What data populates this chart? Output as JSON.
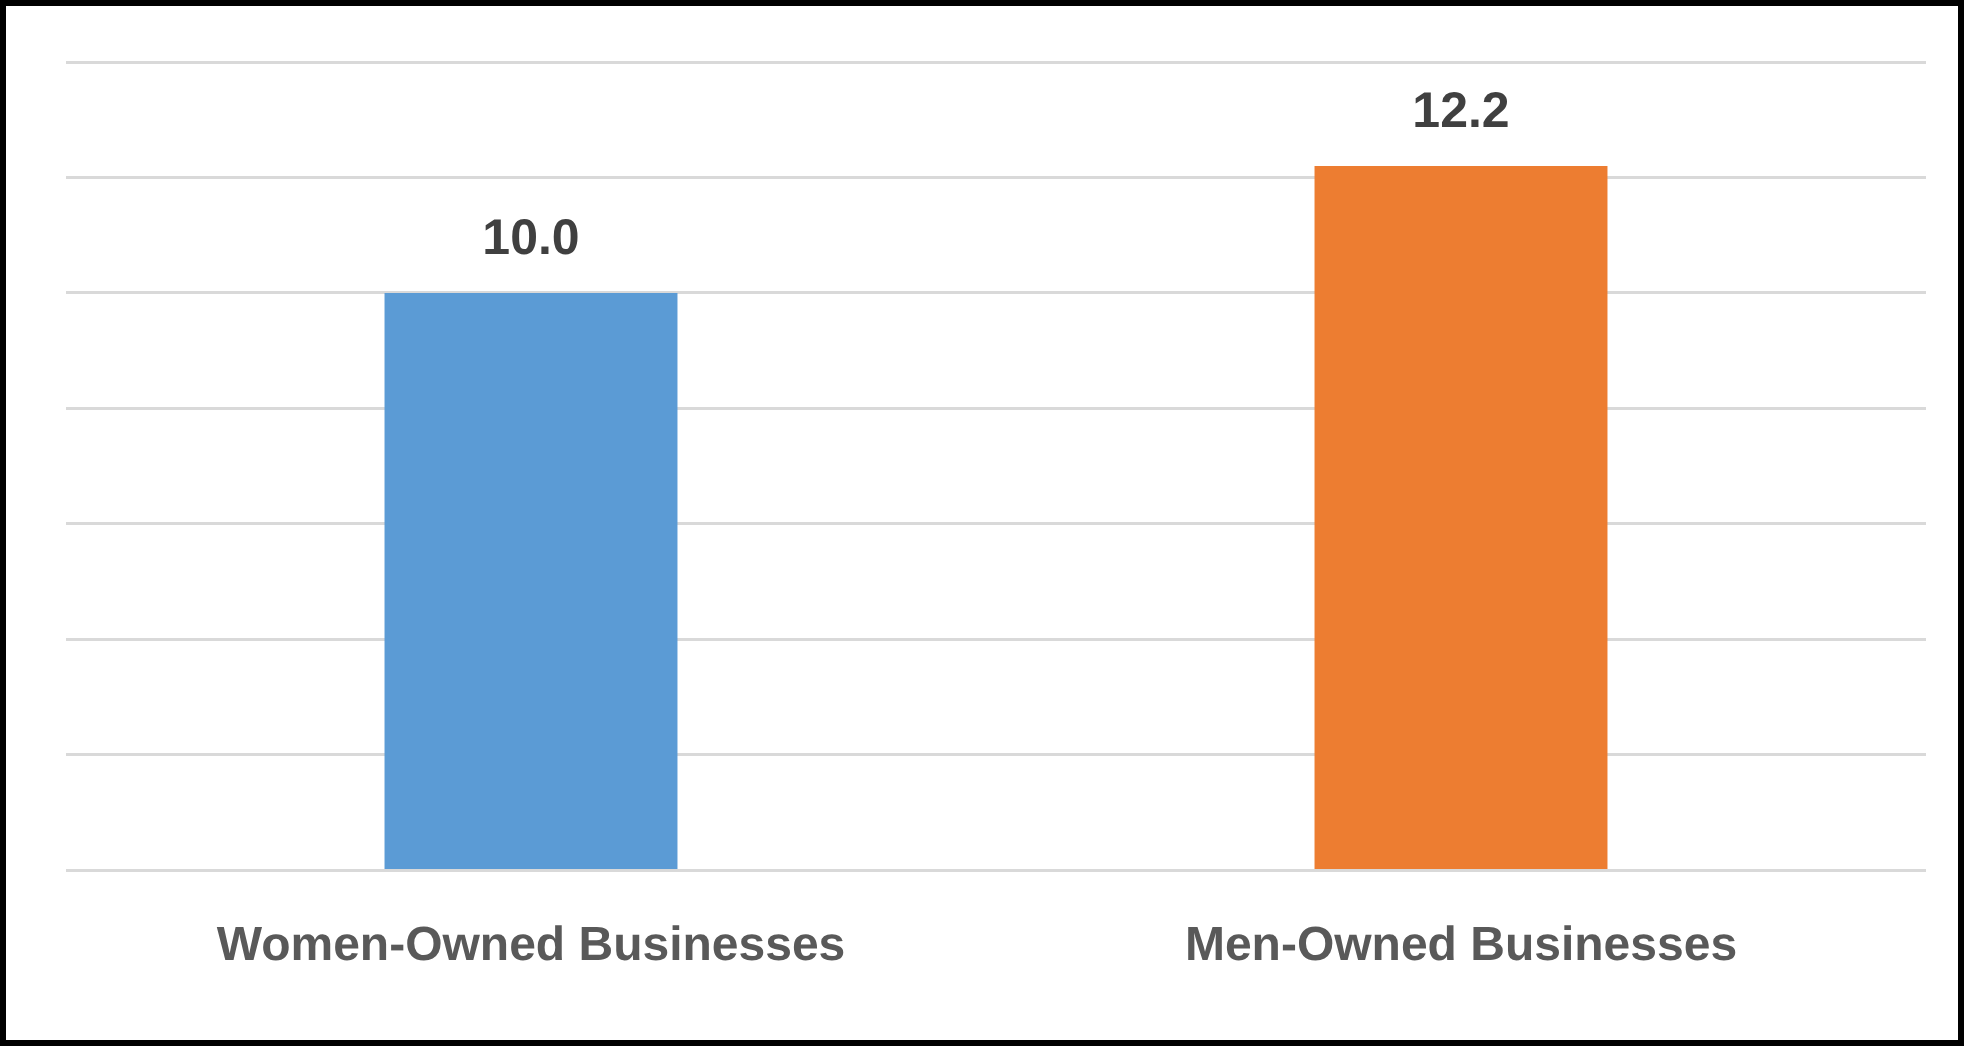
{
  "chart_data": {
    "type": "bar",
    "categories": [
      "Women-Owned Businesses",
      "Men-Owned Businesses"
    ],
    "colors": [
      "#5b9bd5",
      "#ed7d31"
    ],
    "values": [
      10.0,
      12.2
    ],
    "ylim": [
      0,
      14
    ],
    "yticks": [
      {
        "value": 0,
        "label": null
      },
      {
        "value": 2,
        "label": null
      },
      {
        "value": 4,
        "label": null
      },
      {
        "value": 6,
        "label": null
      },
      {
        "value": 8,
        "label": null
      },
      {
        "value": 10,
        "label": null
      },
      {
        "value": 12,
        "label": null
      },
      {
        "value": 14,
        "label": null
      }
    ],
    "value_labels": [
      "10.0",
      "12.2"
    ],
    "grid": "y",
    "tick_labels": "x",
    "legend": false
  }
}
